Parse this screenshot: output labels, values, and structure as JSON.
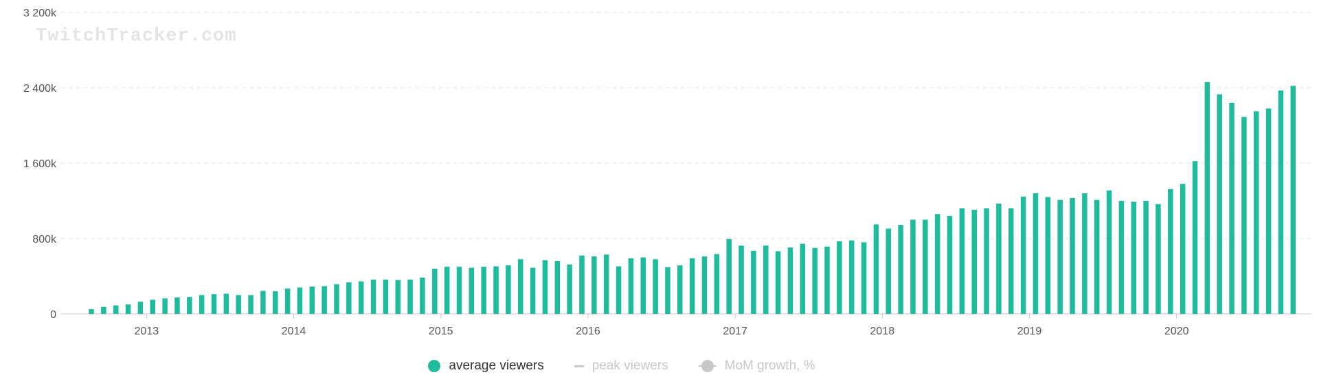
{
  "watermark": "TwitchTracker.com",
  "chart_data": {
    "type": "bar",
    "y_ticks": [
      "0",
      "800k",
      "1 600k",
      "2 400k",
      "3 200k"
    ],
    "y_tick_values": [
      0,
      800000,
      1600000,
      2400000,
      3200000
    ],
    "ylim": [
      0,
      3200000
    ],
    "x_ticks": [
      "2013",
      "2014",
      "2015",
      "2016",
      "2017",
      "2018",
      "2019",
      "2020"
    ],
    "x_start": "2012-08",
    "x_end": "2020-11",
    "grid": true,
    "legend_position": "bottom",
    "series": [
      {
        "name": "average viewers",
        "color": "#1ebc9c",
        "values": [
          50000,
          75000,
          90000,
          100000,
          130000,
          150000,
          165000,
          175000,
          180000,
          200000,
          210000,
          215000,
          200000,
          200000,
          245000,
          240000,
          270000,
          280000,
          290000,
          295000,
          315000,
          335000,
          345000,
          365000,
          365000,
          360000,
          365000,
          385000,
          480000,
          500000,
          500000,
          490000,
          500000,
          505000,
          515000,
          580000,
          490000,
          570000,
          560000,
          525000,
          620000,
          610000,
          630000,
          505000,
          590000,
          600000,
          580000,
          495000,
          515000,
          590000,
          610000,
          635000,
          795000,
          725000,
          670000,
          725000,
          665000,
          705000,
          745000,
          700000,
          715000,
          770000,
          780000,
          760000,
          950000,
          905000,
          945000,
          1000000,
          1000000,
          1060000,
          1040000,
          1120000,
          1105000,
          1120000,
          1170000,
          1120000,
          1245000,
          1280000,
          1240000,
          1210000,
          1230000,
          1280000,
          1210000,
          1310000,
          1200000,
          1190000,
          1200000,
          1165000,
          1325000,
          1380000,
          1620000,
          2460000,
          2330000,
          2240000,
          2090000,
          2150000,
          2180000,
          2370000,
          2420000
        ]
      },
      {
        "name": "peak viewers",
        "color": "#cccccc",
        "values": []
      },
      {
        "name": "MoM growth, %",
        "color": "#cccccc",
        "values": []
      }
    ]
  },
  "legend": {
    "average_viewers": "average viewers",
    "peak_viewers": "peak viewers",
    "mom_growth": "MoM growth, %"
  }
}
